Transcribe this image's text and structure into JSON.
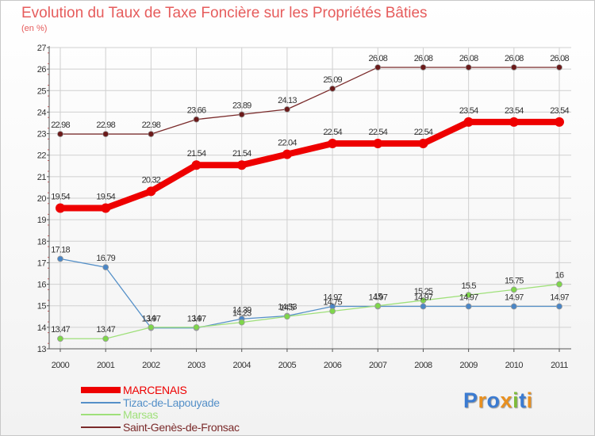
{
  "title": "Evolution du Taux de Taxe Foncière sur les Propriétés Bâties",
  "subtitle": "(en %)",
  "logo": {
    "text": "Proxiti",
    "colors": [
      "#3b7bd1",
      "#e9901f",
      "#3b7bd1",
      "#e9901f",
      "#7dbb3a",
      "#3b7bd1",
      "#e9901f"
    ]
  },
  "colors": {
    "title": "#e65c5c",
    "grid": "#d0d0d0",
    "axis": "#555555",
    "marker_ring": "#999999"
  },
  "chart_data": {
    "type": "line",
    "title": "Evolution du Taux de Taxe Foncière sur les Propriétés Bâties",
    "ylabel": "(en %)",
    "xlabel": "",
    "ylim": [
      13,
      27
    ],
    "yticks": [
      13,
      14,
      15,
      16,
      17,
      18,
      19,
      20,
      21,
      22,
      23,
      24,
      25,
      26,
      27
    ],
    "x": [
      "2000",
      "2001",
      "2002",
      "2003",
      "2004",
      "2005",
      "2006",
      "2007",
      "2008",
      "2009",
      "2010",
      "2011"
    ],
    "grid": true,
    "legend": "bottom-left",
    "series": [
      {
        "name": "Saint-Genès-de-Fronsac",
        "color": "#7a2a2a",
        "marker": "#6b1a1a",
        "width": 1.3,
        "marker_r": 3.5,
        "values": [
          22.98,
          22.98,
          22.98,
          23.66,
          23.89,
          24.13,
          25.09,
          26.08,
          26.08,
          26.08,
          26.08,
          26.08
        ],
        "labels": [
          "22.98",
          "22.98",
          "22.98",
          "23.66",
          "23.89",
          "24.13",
          "25.09",
          "26.08",
          "26.08",
          "26.08",
          "26.08",
          "26.08"
        ]
      },
      {
        "name": "MARCENAIS",
        "color": "#ee0000",
        "marker": "#ee0000",
        "width": 8,
        "marker_r": 6,
        "values": [
          19.54,
          19.54,
          20.32,
          21.54,
          21.54,
          22.04,
          22.54,
          22.54,
          22.54,
          23.54,
          23.54,
          23.54
        ],
        "labels": [
          "19.54",
          "19.54",
          "20.32",
          "21.54",
          "21.54",
          "22.04",
          "22.54",
          "22.54",
          "22.54",
          "23.54",
          "23.54",
          "23.54"
        ]
      },
      {
        "name": "Tizac-de-Lapouyade",
        "color": "#5590c8",
        "marker": "#4a86c6",
        "width": 1.3,
        "marker_r": 3.5,
        "values": [
          17.18,
          16.79,
          13.97,
          13.97,
          14.39,
          14.53,
          14.97,
          14.97,
          14.97,
          14.97,
          14.97,
          14.97
        ],
        "labels": [
          "17.18",
          "16.79",
          "13.97",
          "13.97",
          "14.39",
          "14.53",
          "14.97",
          "14.97",
          "14.97",
          "14.97",
          "14.97",
          "14.97"
        ]
      },
      {
        "name": "Marsas",
        "color": "#9fe07a",
        "marker": "#7ed64a",
        "width": 1.3,
        "marker_r": 3.5,
        "values": [
          13.47,
          13.47,
          14,
          14,
          14.23,
          14.5,
          14.75,
          15,
          15.25,
          15.5,
          15.75,
          16
        ],
        "labels": [
          "13.47",
          "13.47",
          "14",
          "14",
          "14.23",
          "14.5",
          "14.75",
          "15",
          "15.25",
          "15.5",
          "15.75",
          "16"
        ]
      }
    ],
    "legend_order": [
      "MARCENAIS",
      "Tizac-de-Lapouyade",
      "Marsas",
      "Saint-Genès-de-Fronsac"
    ]
  }
}
